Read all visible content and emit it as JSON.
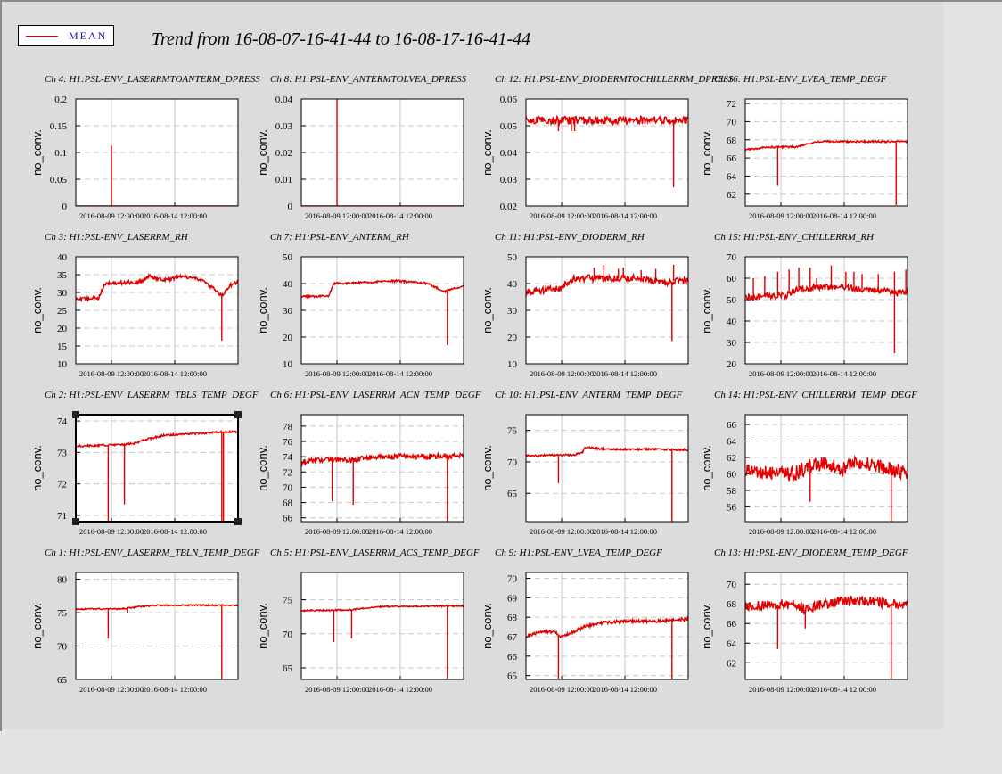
{
  "window": {
    "background": "#dcdcdc"
  },
  "legend": {
    "label": "MEAN",
    "color": "#e00000"
  },
  "title": "Trend from 16-08-07-16-41-44 to 16-08-17-16-41-44",
  "colors": {
    "series": "#e00000",
    "grid": "#c8c8c8",
    "axis": "#000000"
  },
  "chart_data": [
    {
      "type": "line",
      "title": "Ch 4: H1:PSL-ENV_LASERRMTOANTERM_DPRESS",
      "ylabel": "no_conv.",
      "xticks": [
        "2016-08-09 12:00:00",
        "2016-08-14 12:00:00"
      ],
      "yticks": [
        "0.2",
        "0.15",
        "0.1",
        "0.05",
        "0"
      ],
      "ylim": [
        0,
        0.2
      ],
      "base": 0,
      "profile": [
        [
          0,
          0
        ],
        [
          1,
          0
        ]
      ],
      "noise": 0,
      "spikes": [
        [
          0.22,
          0.113
        ]
      ],
      "selected": false
    },
    {
      "type": "line",
      "title": "Ch 8: H1:PSL-ENV_ANTERMTOLVEA_DPRESS",
      "ylabel": "no_conv.",
      "xticks": [
        "2016-08-09 12:00:00",
        "2016-08-14 12:00:00"
      ],
      "yticks": [
        "0.04",
        "0.03",
        "0.02",
        "0.01",
        "0"
      ],
      "ylim": [
        0,
        0.04
      ],
      "base": 0,
      "profile": [
        [
          0,
          0
        ],
        [
          1,
          0
        ]
      ],
      "noise": 0,
      "spikes": [
        [
          0.22,
          0.04
        ]
      ],
      "selected": false
    },
    {
      "type": "line",
      "title": "Ch 12: H1:PSL-ENV_DIODERMTOCHILLERRM_DPRESS",
      "ylabel": "no_conv.",
      "xticks": [
        "2016-08-09 12:00:00",
        "2016-08-14 12:00:00"
      ],
      "yticks": [
        "0.06",
        "0.05",
        "0.04",
        "0.03",
        "0.02"
      ],
      "ylim": [
        0.02,
        0.06
      ],
      "base": 0.052,
      "profile": [
        [
          0,
          0.052
        ],
        [
          1,
          0.052
        ]
      ],
      "noise": 0.0015,
      "spikes": [
        [
          0.2,
          0.048
        ],
        [
          0.28,
          0.048
        ],
        [
          0.3,
          0.048
        ],
        [
          0.91,
          0.027
        ]
      ],
      "selected": false
    },
    {
      "type": "line",
      "title": "Ch 16: H1:PSL-ENV_LVEA_TEMP_DEGF",
      "ylabel": "no_conv.",
      "xticks": [
        "2016-08-09 12:00:00",
        "2016-08-14 12:00:00"
      ],
      "yticks": [
        "72",
        "70",
        "68",
        "66",
        "64",
        "62"
      ],
      "ylim": [
        60.7,
        72.5
      ],
      "base": 66.9,
      "profile": [
        [
          0,
          66.9
        ],
        [
          0.15,
          67.2
        ],
        [
          0.3,
          67.2
        ],
        [
          0.45,
          67.8
        ],
        [
          1,
          67.8
        ]
      ],
      "noise": 0.1,
      "spikes": [
        [
          0.2,
          62.9
        ],
        [
          0.93,
          60.8
        ]
      ],
      "selected": false
    },
    {
      "type": "line",
      "title": "Ch 3: H1:PSL-ENV_LASERRM_RH",
      "ylabel": "no_conv.",
      "xticks": [
        "2016-08-09 12:00:00",
        "2016-08-14 12:00:00"
      ],
      "yticks": [
        "40",
        "35",
        "30",
        "25",
        "20",
        "15",
        "10"
      ],
      "ylim": [
        10,
        40
      ],
      "base": 28,
      "profile": [
        [
          0,
          28
        ],
        [
          0.14,
          28.5
        ],
        [
          0.18,
          32.5
        ],
        [
          0.4,
          33
        ],
        [
          0.45,
          34.5
        ],
        [
          0.55,
          33.5
        ],
        [
          0.65,
          34.5
        ],
        [
          0.78,
          33.5
        ],
        [
          0.85,
          31
        ],
        [
          0.9,
          29
        ],
        [
          0.95,
          32
        ],
        [
          1,
          33
        ]
      ],
      "noise": 0.5,
      "spikes": [
        [
          0.9,
          16.5
        ]
      ],
      "selected": false
    },
    {
      "type": "line",
      "title": "Ch 7: H1:PSL-ENV_ANTERM_RH",
      "ylabel": "no_conv.",
      "xticks": [
        "2016-08-09 12:00:00",
        "2016-08-14 12:00:00"
      ],
      "yticks": [
        "50",
        "40",
        "30",
        "20",
        "10"
      ],
      "ylim": [
        10,
        50
      ],
      "base": 35,
      "profile": [
        [
          0,
          35
        ],
        [
          0.17,
          35.5
        ],
        [
          0.2,
          40
        ],
        [
          0.6,
          41
        ],
        [
          0.78,
          40
        ],
        [
          0.88,
          37
        ],
        [
          0.93,
          38
        ],
        [
          1,
          39
        ]
      ],
      "noise": 0.4,
      "spikes": [
        [
          0.9,
          17
        ]
      ],
      "selected": false
    },
    {
      "type": "line",
      "title": "Ch 11: H1:PSL-ENV_DIODERM_RH",
      "ylabel": "no_conv.",
      "xticks": [
        "2016-08-09 12:00:00",
        "2016-08-14 12:00:00"
      ],
      "yticks": [
        "50",
        "40",
        "30",
        "20",
        "10"
      ],
      "ylim": [
        10,
        50
      ],
      "base": 37,
      "profile": [
        [
          0,
          37
        ],
        [
          0.2,
          38
        ],
        [
          0.3,
          42
        ],
        [
          0.5,
          42
        ],
        [
          0.7,
          42
        ],
        [
          0.85,
          40
        ],
        [
          0.92,
          41
        ],
        [
          1,
          41
        ]
      ],
      "noise": 1.3,
      "spikes": [
        [
          0.42,
          46
        ],
        [
          0.48,
          47
        ],
        [
          0.57,
          45.5
        ],
        [
          0.6,
          46
        ],
        [
          0.71,
          45
        ],
        [
          0.8,
          45.5
        ],
        [
          0.91,
          47
        ],
        [
          0.9,
          18.5
        ]
      ],
      "selected": false
    },
    {
      "type": "line",
      "title": "Ch 15: H1:PSL-ENV_CHILLERRM_RH",
      "ylabel": "no_conv.",
      "xticks": [
        "2016-08-09 12:00:00",
        "2016-08-14 12:00:00"
      ],
      "yticks": [
        "70",
        "60",
        "50",
        "40",
        "30",
        "20"
      ],
      "ylim": [
        20,
        70
      ],
      "base": 51,
      "profile": [
        [
          0,
          51
        ],
        [
          0.25,
          52
        ],
        [
          0.32,
          55
        ],
        [
          0.5,
          56
        ],
        [
          0.7,
          55
        ],
        [
          0.85,
          54
        ],
        [
          0.95,
          53
        ],
        [
          1,
          54
        ]
      ],
      "noise": 1.5,
      "spikes": [
        [
          0.05,
          60
        ],
        [
          0.12,
          61
        ],
        [
          0.2,
          63
        ],
        [
          0.27,
          64
        ],
        [
          0.33,
          65
        ],
        [
          0.4,
          65
        ],
        [
          0.44,
          60
        ],
        [
          0.53,
          66
        ],
        [
          0.62,
          63
        ],
        [
          0.67,
          63
        ],
        [
          0.72,
          62
        ],
        [
          0.82,
          62
        ],
        [
          0.92,
          63
        ],
        [
          0.99,
          64
        ],
        [
          0.92,
          25
        ]
      ],
      "selected": false
    },
    {
      "type": "line",
      "title": "Ch 2: H1:PSL-ENV_LASERRM_TBLS_TEMP_DEGF",
      "ylabel": "no_conv.",
      "xticks": [
        "2016-08-09 12:00:00",
        "2016-08-14 12:00:00"
      ],
      "yticks": [
        "74",
        "73",
        "72",
        "71"
      ],
      "ylim": [
        70.8,
        74.2
      ],
      "base": 73.15,
      "profile": [
        [
          0,
          73.2
        ],
        [
          0.3,
          73.25
        ],
        [
          0.38,
          73.3
        ],
        [
          0.42,
          73.4
        ],
        [
          0.55,
          73.55
        ],
        [
          0.75,
          73.6
        ],
        [
          0.9,
          73.65
        ],
        [
          1,
          73.65
        ]
      ],
      "noise": 0.03,
      "spikes": [
        [
          0.2,
          70.8
        ],
        [
          0.3,
          71.35
        ],
        [
          0.9,
          70.8
        ],
        [
          0.91,
          70.8
        ]
      ],
      "selected": true
    },
    {
      "type": "line",
      "title": "Ch 6: H1:PSL-ENV_LASERRM_ACN_TEMP_DEGF",
      "ylabel": "no_conv.",
      "xticks": [
        "2016-08-09 12:00:00",
        "2016-08-14 12:00:00"
      ],
      "yticks": [
        "78",
        "76",
        "74",
        "72",
        "70",
        "68",
        "66"
      ],
      "ylim": [
        65.5,
        79.5
      ],
      "base": 73.3,
      "profile": [
        [
          0,
          73.3
        ],
        [
          0.15,
          73.7
        ],
        [
          0.3,
          73.5
        ],
        [
          0.38,
          73.8
        ],
        [
          0.5,
          74
        ],
        [
          1,
          74.1
        ]
      ],
      "noise": 0.35,
      "spikes": [
        [
          0.19,
          68.2
        ],
        [
          0.32,
          67.7
        ],
        [
          0.9,
          65.5
        ]
      ],
      "selected": false
    },
    {
      "type": "line",
      "title": "Ch 10: H1:PSL-ENV_ANTERM_TEMP_DEGF",
      "ylabel": "no_conv.",
      "xticks": [
        "2016-08-09 12:00:00",
        "2016-08-14 12:00:00"
      ],
      "yticks": [
        "75",
        "70",
        "65"
      ],
      "ylim": [
        60.5,
        77.5
      ],
      "base": 71,
      "profile": [
        [
          0,
          71
        ],
        [
          0.3,
          71.1
        ],
        [
          0.35,
          71.6
        ],
        [
          0.36,
          72.3
        ],
        [
          0.5,
          72
        ],
        [
          0.75,
          72
        ],
        [
          1,
          71.9
        ]
      ],
      "noise": 0.15,
      "spikes": [
        [
          0.2,
          66.6
        ],
        [
          0.9,
          60.5
        ]
      ],
      "selected": false
    },
    {
      "type": "line",
      "title": "Ch 14: H1:PSL-ENV_CHILLERRM_TEMP_DEGF",
      "ylabel": "no_conv.",
      "xticks": [
        "2016-08-09 12:00:00",
        "2016-08-14 12:00:00"
      ],
      "yticks": [
        "66",
        "64",
        "62",
        "60",
        "58",
        "56"
      ],
      "ylim": [
        54.2,
        67.2
      ],
      "base": 60.3,
      "profile": [
        [
          0,
          60.3
        ],
        [
          0.2,
          60
        ],
        [
          0.3,
          60
        ],
        [
          0.4,
          61
        ],
        [
          0.5,
          61.2
        ],
        [
          0.6,
          60.5
        ],
        [
          0.7,
          61.5
        ],
        [
          0.8,
          61
        ],
        [
          0.9,
          60.5
        ],
        [
          1,
          60
        ]
      ],
      "noise": 0.9,
      "spikes": [
        [
          0.4,
          56.6
        ],
        [
          0.9,
          54.2
        ]
      ],
      "selected": false
    },
    {
      "type": "line",
      "title": "Ch 1: H1:PSL-ENV_LASERRM_TBLN_TEMP_DEGF",
      "ylabel": "no_conv.",
      "xticks": [
        "2016-08-09 12:00:00",
        "2016-08-14 12:00:00"
      ],
      "yticks": [
        "80",
        "75",
        "70",
        "65"
      ],
      "ylim": [
        65,
        81
      ],
      "base": 75.5,
      "profile": [
        [
          0,
          75.5
        ],
        [
          0.3,
          75.6
        ],
        [
          0.4,
          75.9
        ],
        [
          0.5,
          76.1
        ],
        [
          1,
          76.1
        ]
      ],
      "noise": 0.1,
      "spikes": [
        [
          0.2,
          71.1
        ],
        [
          0.32,
          75
        ],
        [
          0.9,
          65
        ]
      ],
      "selected": false
    },
    {
      "type": "line",
      "title": "Ch 5: H1:PSL-ENV_LASERRM_ACS_TEMP_DEGF",
      "ylabel": "no_conv.",
      "xticks": [
        "2016-08-09 12:00:00",
        "2016-08-14 12:00:00"
      ],
      "yticks": [
        "75",
        "70",
        "65"
      ],
      "ylim": [
        63.3,
        79
      ],
      "base": 73.4,
      "profile": [
        [
          0,
          73.4
        ],
        [
          0.3,
          73.5
        ],
        [
          0.4,
          73.8
        ],
        [
          0.5,
          74
        ],
        [
          1,
          74.1
        ]
      ],
      "noise": 0.1,
      "spikes": [
        [
          0.2,
          68.8
        ],
        [
          0.31,
          69.3
        ],
        [
          0.9,
          63.3
        ]
      ],
      "selected": false
    },
    {
      "type": "line",
      "title": "Ch 9: H1:PSL-ENV_LVEA_TEMP_DEGF",
      "ylabel": "no_conv.",
      "xticks": [
        "2016-08-09 12:00:00",
        "2016-08-14 12:00:00"
      ],
      "yticks": [
        "70",
        "69",
        "68",
        "67",
        "66",
        "65"
      ],
      "ylim": [
        64.8,
        70.3
      ],
      "base": 67,
      "profile": [
        [
          0,
          67
        ],
        [
          0.1,
          67.3
        ],
        [
          0.18,
          67.2
        ],
        [
          0.22,
          67
        ],
        [
          0.28,
          67.2
        ],
        [
          0.36,
          67.5
        ],
        [
          0.45,
          67.7
        ],
        [
          0.6,
          67.8
        ],
        [
          0.8,
          67.8
        ],
        [
          1,
          67.9
        ]
      ],
      "noise": 0.08,
      "spikes": [
        [
          0.2,
          64.8
        ],
        [
          0.9,
          64.8
        ]
      ],
      "selected": false
    },
    {
      "type": "line",
      "title": "Ch 13: H1:PSL-ENV_DIODERM_TEMP_DEGF",
      "ylabel": "no_conv.",
      "xticks": [
        "2016-08-09 12:00:00",
        "2016-08-14 12:00:00"
      ],
      "yticks": [
        "70",
        "68",
        "66",
        "64",
        "62"
      ],
      "ylim": [
        60.3,
        71.2
      ],
      "base": 67.8,
      "profile": [
        [
          0,
          67.8
        ],
        [
          0.3,
          68
        ],
        [
          0.38,
          67.3
        ],
        [
          0.45,
          67.9
        ],
        [
          0.6,
          68.3
        ],
        [
          0.75,
          68.3
        ],
        [
          0.9,
          68
        ],
        [
          1,
          67.9
        ]
      ],
      "noise": 0.5,
      "spikes": [
        [
          0.2,
          63.4
        ],
        [
          0.37,
          65.5
        ],
        [
          0.9,
          60.3
        ]
      ],
      "selected": false
    }
  ]
}
